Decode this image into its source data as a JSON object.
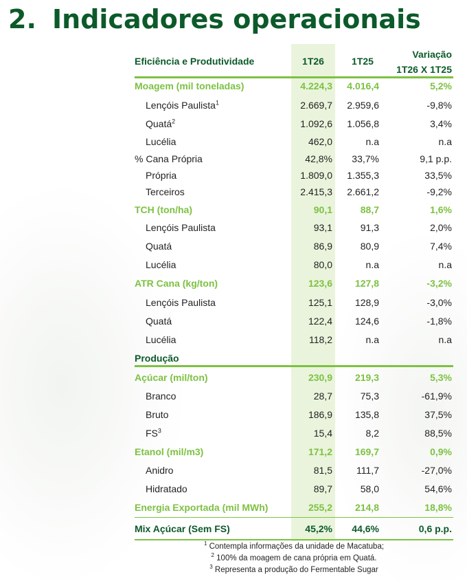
{
  "title": {
    "number": "2.",
    "text": "Indicadores operacionais"
  },
  "header": {
    "label": "Eficiência e Produtividade",
    "col1": "1T26",
    "col2": "1T25",
    "variation_line1": "Variação",
    "variation_line2": "1T26 X 1T25"
  },
  "rows": [
    {
      "label": "Moagem (mil toneladas)",
      "v1": "4.224,3",
      "v2": "4.016,4",
      "var": "5,2%",
      "sup": ""
    },
    {
      "label": "Lençóis Paulista",
      "sup": "1",
      "v1": "2.669,7",
      "v2": "2.959,6",
      "var": "-9,8%"
    },
    {
      "label": "Quatá",
      "sup": "2",
      "v1": "1.092,6",
      "v2": "1.056,8",
      "var": "3,4%"
    },
    {
      "label": "Lucélia",
      "sup": "",
      "v1": "462,0",
      "v2": "n.a",
      "var": "n.a"
    },
    {
      "label": "% Cana Própria",
      "sup": "",
      "v1": "42,8%",
      "v2": "33,7%",
      "var": "9,1 p.p."
    },
    {
      "label": "Própria",
      "sup": "",
      "v1": "1.809,0",
      "v2": "1.355,3",
      "var": "33,5%"
    },
    {
      "label": "Terceiros",
      "sup": "",
      "v1": "2.415,3",
      "v2": "2.661,2",
      "var": "-9,2%"
    },
    {
      "label": "TCH (ton/ha)",
      "sup": "",
      "v1": "90,1",
      "v2": "88,7",
      "var": "1,6%"
    },
    {
      "label": "Lençóis Paulista",
      "sup": "",
      "v1": "93,1",
      "v2": "91,3",
      "var": "2,0%"
    },
    {
      "label": "Quatá",
      "sup": "",
      "v1": "86,9",
      "v2": "80,9",
      "var": "7,4%"
    },
    {
      "label": "Lucélia",
      "sup": "",
      "v1": "80,0",
      "v2": "n.a",
      "var": "n.a"
    },
    {
      "label": "ATR Cana (kg/ton)",
      "sup": "",
      "v1": "123,6",
      "v2": "127,8",
      "var": "-3,2%"
    },
    {
      "label": "Lençóis Paulista",
      "sup": "",
      "v1": "125,1",
      "v2": "128,9",
      "var": "-3,0%"
    },
    {
      "label": "Quatá",
      "sup": "",
      "v1": "122,4",
      "v2": "124,6",
      "var": "-1,8%"
    },
    {
      "label": "Lucélia",
      "sup": "",
      "v1": "118,2",
      "v2": "n.a",
      "var": "n.a"
    },
    {
      "label": "Produção",
      "sup": "",
      "v1": "",
      "v2": "",
      "var": ""
    },
    {
      "label": "Açúcar (mil/ton)",
      "sup": "",
      "v1": "230,9",
      "v2": "219,3",
      "var": "5,3%"
    },
    {
      "label": "Branco",
      "sup": "",
      "v1": "28,7",
      "v2": "75,3",
      "var": "-61,9%"
    },
    {
      "label": "Bruto",
      "sup": "",
      "v1": "186,9",
      "v2": "135,8",
      "var": "37,5%"
    },
    {
      "label": "FS",
      "sup": "3",
      "v1": "15,4",
      "v2": "8,2",
      "var": "88,5%"
    },
    {
      "label": "Etanol (mil/m3)",
      "sup": "",
      "v1": "171,2",
      "v2": "169,7",
      "var": "0,9%"
    },
    {
      "label": "Anidro",
      "sup": "",
      "v1": "81,5",
      "v2": "111,7",
      "var": "-27,0%"
    },
    {
      "label": "Hidratado",
      "sup": "",
      "v1": "89,7",
      "v2": "58,0",
      "var": "54,6%"
    },
    {
      "label": "Energia Exportada (mil MWh)",
      "sup": "",
      "v1": "255,2",
      "v2": "214,8",
      "var": "18,8%"
    },
    {
      "label": "Mix Açúcar (Sem FS)",
      "sup": "",
      "v1": "45,2%",
      "v2": "44,6%",
      "var": "0,6 p.p."
    }
  ],
  "notes": [
    {
      "sup": "1",
      "text": "Contempla informações da unidade de Macatuba;"
    },
    {
      "sup": "2",
      "text": "100% da moagem de cana própria em Quatá."
    },
    {
      "sup": "3",
      "text": "Representa a produção do Fermentable Sugar"
    }
  ],
  "colors": {
    "dark_green": "#0c5a2a",
    "light_green": "#7dc142",
    "band": "#eaf4dc"
  }
}
